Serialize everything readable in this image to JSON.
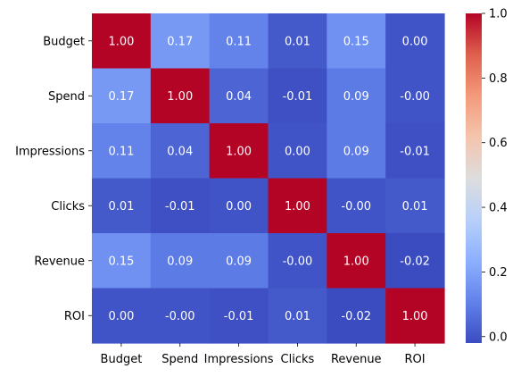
{
  "chart_data": {
    "type": "heatmap",
    "title": "",
    "xlabel": "",
    "ylabel": "",
    "rows": [
      "Budget",
      "Spend",
      "Impressions",
      "Clicks",
      "Revenue",
      "ROI"
    ],
    "columns": [
      "Budget",
      "Spend",
      "Impressions",
      "Clicks",
      "Revenue",
      "ROI"
    ],
    "values": [
      [
        1.0,
        0.17,
        0.11,
        0.01,
        0.15,
        0.0
      ],
      [
        0.17,
        1.0,
        0.04,
        -0.01,
        0.09,
        -0.0
      ],
      [
        0.11,
        0.04,
        1.0,
        0.0,
        0.09,
        -0.01
      ],
      [
        0.01,
        -0.01,
        0.0,
        1.0,
        -0.0,
        0.01
      ],
      [
        0.15,
        0.09,
        0.09,
        -0.0,
        1.0,
        -0.02
      ],
      [
        0.0,
        -0.0,
        -0.01,
        0.01,
        -0.02,
        1.0
      ]
    ],
    "annotations": [
      [
        "1.00",
        "0.17",
        "0.11",
        "0.01",
        "0.15",
        "0.00"
      ],
      [
        "0.17",
        "1.00",
        "0.04",
        "-0.01",
        "0.09",
        "-0.00"
      ],
      [
        "0.11",
        "0.04",
        "1.00",
        "0.00",
        "0.09",
        "-0.01"
      ],
      [
        "0.01",
        "-0.01",
        "0.00",
        "1.00",
        "-0.00",
        "0.01"
      ],
      [
        "0.15",
        "0.09",
        "0.09",
        "-0.00",
        "1.00",
        "-0.02"
      ],
      [
        "0.00",
        "-0.00",
        "-0.01",
        "0.01",
        "-0.02",
        "1.00"
      ]
    ],
    "colormap": "coolwarm",
    "vmin": -0.02,
    "vmax": 1.0,
    "colorbar": {
      "ticks": [
        0.0,
        0.2,
        0.4,
        0.6,
        0.8,
        1.0
      ],
      "tick_labels": [
        "0.0",
        "0.2",
        "0.4",
        "0.6",
        "0.8",
        "1.0"
      ]
    },
    "grid": false,
    "legend": "colorbar-right"
  }
}
